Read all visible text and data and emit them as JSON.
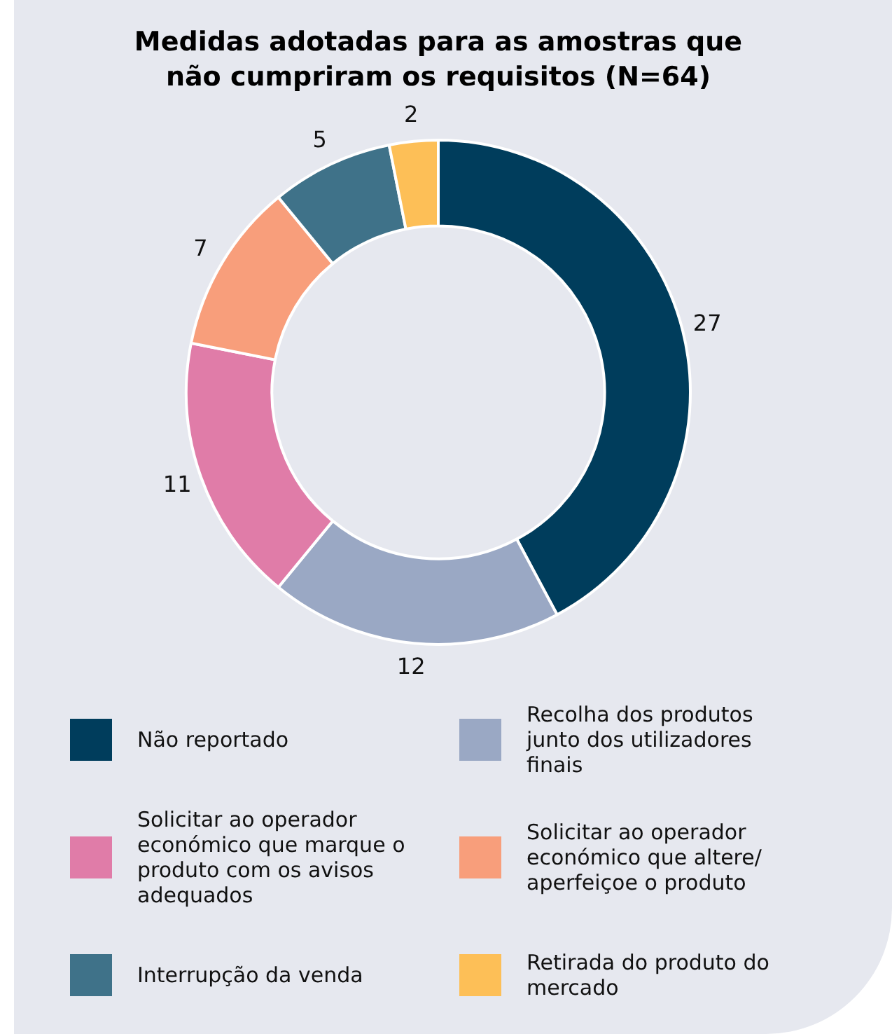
{
  "chart_data": {
    "type": "donut",
    "title": "Medidas adotadas para as amostras que não cumpriram os requisitos (N=64)",
    "categories": [
      "Não reportado",
      "Recolha dos produtos junto dos utilizadores finais",
      "Solicitar ao operador económico que marque o produto com os avisos adequados",
      "Solicitar ao operador económico que altere/ aperfeiçoe o produto",
      "Interrupção da venda",
      "Retirada do produto do mercado"
    ],
    "values": [
      27,
      12,
      11,
      7,
      5,
      2
    ],
    "colors": [
      "#003d5c",
      "#9aa8c4",
      "#e07ca8",
      "#f89e7b",
      "#3f7289",
      "#fdbf57"
    ],
    "data_labels": true,
    "legend": "bottom"
  }
}
